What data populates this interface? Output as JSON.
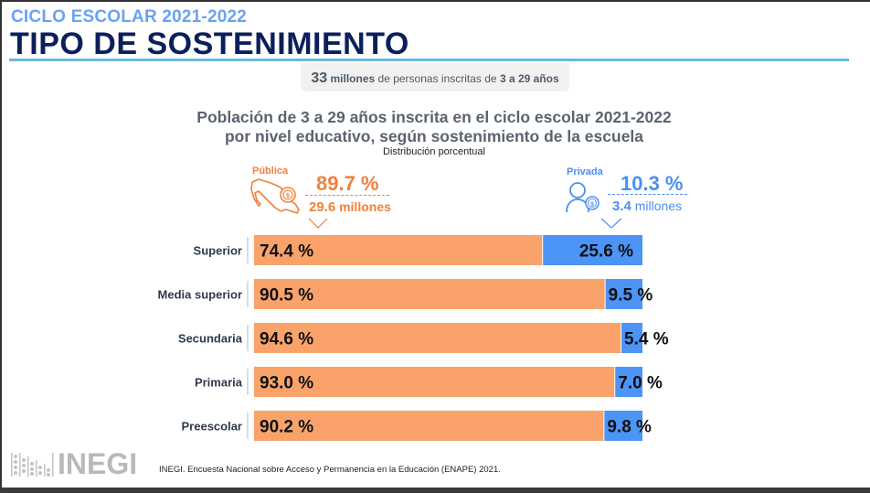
{
  "header": {
    "subtitle": "CICLO ESCOLAR 2021-2022",
    "title": "TIPO DE SOSTENIMIENTO"
  },
  "summary": {
    "count": "33",
    "count_unit": "millones",
    "text": "de personas inscritas de",
    "range": "3 a 29 años"
  },
  "legend": {
    "publica": {
      "label": "Pública",
      "percent": "89.7 %",
      "millions_value": "29.6",
      "millions_unit": "millones",
      "color": "#f9a36a",
      "accent": "#f2803a",
      "icon": "mexico-map-coin-icon"
    },
    "privada": {
      "label": "Privada",
      "percent": "10.3 %",
      "millions_value": "3.4",
      "millions_unit": "millones",
      "color": "#4c94f5",
      "accent": "#4a8ff0",
      "icon": "person-coin-icon"
    }
  },
  "chart_data": {
    "type": "bar",
    "orientation": "horizontal-stacked-100",
    "title": "Población de 3 a 29 años inscrita en el ciclo escolar 2021-2022 por nivel educativo, según sostenimiento de la escuela",
    "title_line1": "Población de 3 a 29 años inscrita en el ciclo escolar 2021-2022",
    "title_line2": "por nivel educativo, según sostenimiento de la escuela",
    "subtitle": "Distribución porcentual",
    "categories": [
      "Superior",
      "Media superior",
      "Secundaria",
      "Primaria",
      "Preescolar"
    ],
    "series": [
      {
        "name": "Pública",
        "values": [
          74.4,
          90.5,
          94.6,
          93.0,
          90.2
        ],
        "labels": [
          "74.4 %",
          "90.5 %",
          "94.6 %",
          "93.0 %",
          "90.2 %"
        ],
        "color": "#f9a36a"
      },
      {
        "name": "Privada",
        "values": [
          25.6,
          9.5,
          5.4,
          7.0,
          9.8
        ],
        "labels": [
          "25.6 %",
          "9.5 %",
          "5.4 %",
          "7.0 %",
          "9.8 %"
        ],
        "color": "#4c94f5"
      }
    ],
    "xlim": [
      0,
      100
    ],
    "xlabel": "",
    "ylabel": "",
    "grid": false
  },
  "footer": {
    "logo_text": "INEGI",
    "source": "INEGI. Encuesta Nacional sobre Acceso y Permanencia en la Educación (ENAPE) 2021."
  }
}
